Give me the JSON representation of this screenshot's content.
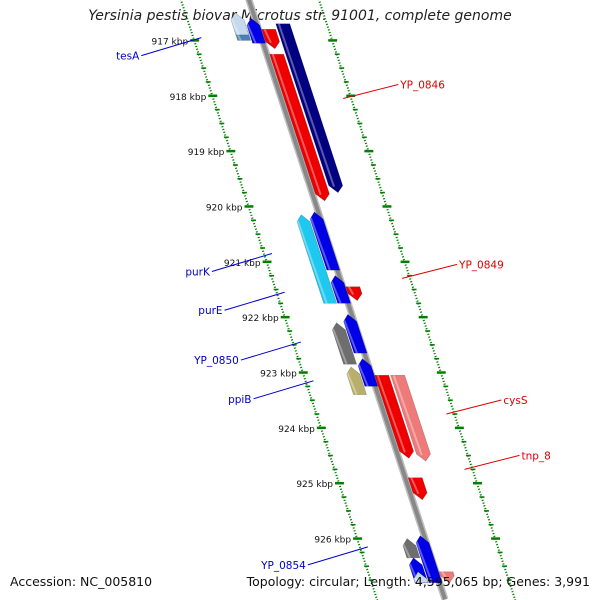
{
  "title": "Yersinia pestis biovar Microtus str. 91001, complete genome",
  "footer": {
    "accession_label": "Accession:",
    "accession": "NC_005810",
    "summary": "Topology: circular; Length: 4,595,065 bp; Genes: 3,991"
  },
  "ruler": {
    "unit": "kbp",
    "ticks": [
      917,
      918,
      919,
      920,
      921,
      922,
      923,
      924,
      925,
      926
    ],
    "ticks_per_kbp": 4
  },
  "colors": {
    "ruler": "#008000",
    "backbone": "#888888",
    "forward_strand_label": "#0000cc",
    "reverse_strand_label": "#dd0000",
    "gene_blue": "#0000e6",
    "gene_navy": "#000080",
    "gene_cyan": "#1ec8ee",
    "gene_gray": "#6e6e6e",
    "gene_khaki": "#b8b06a",
    "gene_red": "#ee0000",
    "gene_pink": "#ee7a7a",
    "gene_lightblue": "#c4d8ee",
    "gene_steelblue": "#4682b4"
  },
  "features": [
    {
      "lane": "fwd_far",
      "start": 916.7,
      "end": 917.0,
      "color": "#4682b4"
    },
    {
      "lane": "fwd_far",
      "start": 916.5,
      "end": 916.9,
      "color": "#c4d8ee"
    },
    {
      "lane": "fwd_near",
      "start": 916.6,
      "end": 917.05,
      "color": "#0000e6"
    },
    {
      "lane": "rev_near",
      "start": 916.8,
      "end": 917.15,
      "color": "#ee0000"
    },
    {
      "lane": "rev_far",
      "start": 916.7,
      "end": 919.75,
      "color": "#000080"
    },
    {
      "lane": "rev_near",
      "start": 917.25,
      "end": 919.9,
      "color": "#ee0000"
    },
    {
      "lane": "fwd_far",
      "start": 920.15,
      "end": 921.75,
      "color": "#1ec8ee"
    },
    {
      "lane": "fwd_near",
      "start": 920.1,
      "end": 921.15,
      "color": "#0000e6"
    },
    {
      "lane": "fwd_near",
      "start": 921.25,
      "end": 921.75,
      "color": "#0000e6"
    },
    {
      "lane": "rev_near",
      "start": 921.45,
      "end": 921.7,
      "color": "#ee0000"
    },
    {
      "lane": "fwd_far",
      "start": 922.1,
      "end": 922.85,
      "color": "#6e6e6e"
    },
    {
      "lane": "fwd_far",
      "start": 922.9,
      "end": 923.4,
      "color": "#b8b06a"
    },
    {
      "lane": "fwd_near",
      "start": 921.95,
      "end": 922.65,
      "color": "#0000e6"
    },
    {
      "lane": "fwd_near",
      "start": 922.75,
      "end": 923.25,
      "color": "#0000e6"
    },
    {
      "lane": "rev_near",
      "start": 923.05,
      "end": 924.55,
      "color": "#ee0000"
    },
    {
      "lane": "rev_far",
      "start": 923.05,
      "end": 924.6,
      "color": "#ee7a7a"
    },
    {
      "lane": "rev_near",
      "start": 924.9,
      "end": 925.3,
      "color": "#ee0000"
    },
    {
      "lane": "fwd_far",
      "start": 926.0,
      "end": 926.35,
      "color": "#6e6e6e"
    },
    {
      "lane": "fwd_far",
      "start": 926.35,
      "end": 926.8,
      "color": "#0000e6"
    },
    {
      "lane": "fwd_near",
      "start": 925.95,
      "end": 926.8,
      "color": "#0000e6"
    },
    {
      "lane": "fwd_far",
      "start": 926.6,
      "end": 926.8,
      "color": "#c4d8ee"
    },
    {
      "lane": "rev_near",
      "start": 926.6,
      "end": 926.8,
      "color": "#ee7a7a"
    }
  ],
  "gene_labels": [
    {
      "name": "tesA",
      "side": "left",
      "at": 916.95
    },
    {
      "name": "YP_0846",
      "side": "right",
      "at": 918.05
    },
    {
      "name": "purK",
      "side": "left",
      "at": 920.85
    },
    {
      "name": "YP_0849",
      "side": "right",
      "at": 921.3
    },
    {
      "name": "purE",
      "side": "left",
      "at": 921.55
    },
    {
      "name": "YP_0850",
      "side": "left",
      "at": 922.45
    },
    {
      "name": "ppiB",
      "side": "left",
      "at": 923.15
    },
    {
      "name": "cysS",
      "side": "right",
      "at": 923.75
    },
    {
      "name": "tnp_8",
      "side": "right",
      "at": 924.75
    },
    {
      "name": "YP_0854",
      "side": "left",
      "at": 926.15
    }
  ]
}
